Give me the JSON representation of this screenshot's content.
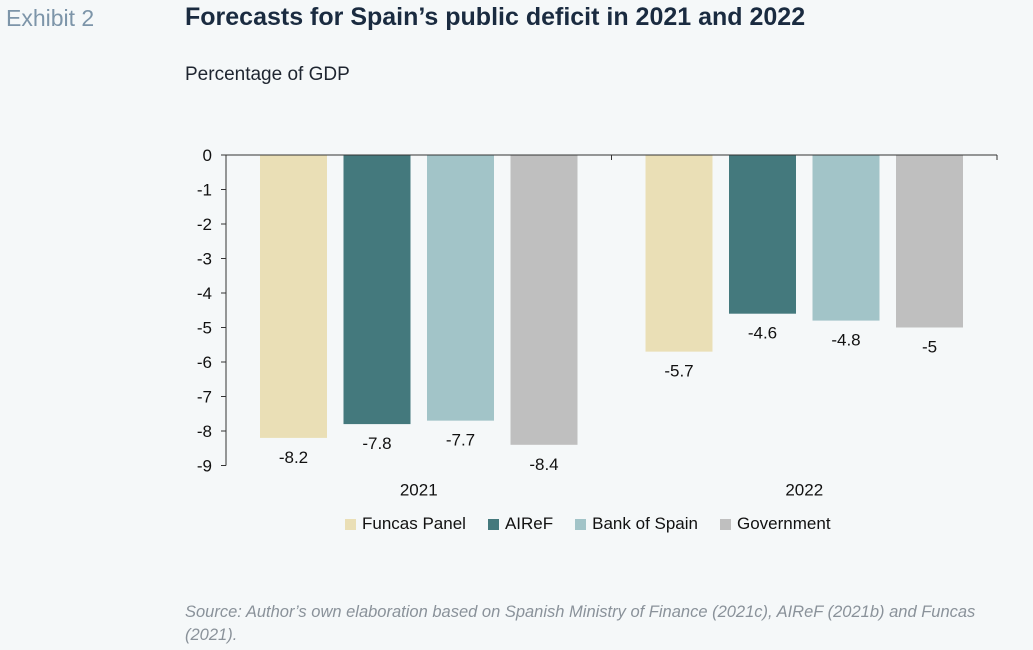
{
  "exhibit_label": "Exhibit 2",
  "title": "Forecasts for Spain’s public deficit in 2021 and 2022",
  "subtitle": "Percentage of GDP",
  "source": "Source: Author’s own elaboration based on Spanish Ministry of Finance (2021c), AIReF (2021b) and Funcas (2021).",
  "colors": {
    "funcas": "#eadfb6",
    "airef": "#44797d",
    "bank_of_spain": "#a2c4c8",
    "government": "#bfbfbf"
  },
  "chart_data": {
    "type": "bar",
    "categories": [
      "2021",
      "2022"
    ],
    "series": [
      {
        "name": "Funcas Panel",
        "values": [
          -8.2,
          -5.7
        ],
        "color": "#eadfb6"
      },
      {
        "name": "AIReF",
        "values": [
          -7.8,
          -4.6
        ],
        "color": "#44797d"
      },
      {
        "name": "Bank of Spain",
        "values": [
          -7.7,
          -4.8
        ],
        "color": "#a2c4c8"
      },
      {
        "name": "Government",
        "values": [
          -8.4,
          -5
        ],
        "color": "#bfbfbf"
      }
    ],
    "data_labels": [
      [
        "-8.2",
        "-5.7"
      ],
      [
        "-7.8",
        "-4.6"
      ],
      [
        "-7.7",
        "-4.8"
      ],
      [
        "-8.4",
        "-5"
      ]
    ],
    "y_ticks": [
      "0",
      "-1",
      "-2",
      "-3",
      "-4",
      "-5",
      "-6",
      "-7",
      "-8",
      "-9"
    ],
    "ylim": [
      -9,
      0
    ],
    "xlabel": "",
    "ylabel": "",
    "grid": false,
    "legend_position": "bottom"
  }
}
